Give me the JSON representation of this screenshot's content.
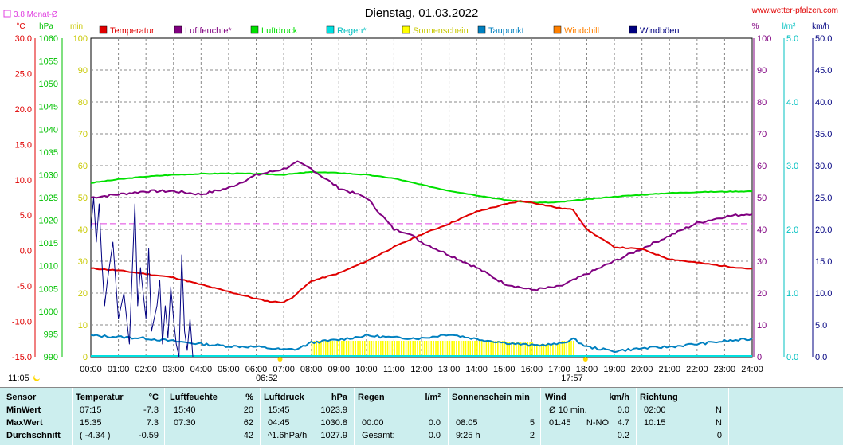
{
  "site": "www.wetter-pfalzen.com",
  "monthavg_label": "3.8 Monat-Ø",
  "sunrise": "06:52",
  "sunset": "17:57",
  "moon_time": "11:05",
  "colors": {
    "temp": "#e00000",
    "hum": "#800080",
    "press": "#00e000",
    "rain": "#00e0e0",
    "sun": "#ffff00",
    "dew": "#0080c0",
    "chill": "#ff8000",
    "gust": "#000080",
    "monthavg": "#e040e0"
  },
  "chart_data": {
    "type": "line",
    "title": "Dienstag, 01.03.2022",
    "legend": [
      "Temperatur",
      "Luftfeuchte*",
      "Luftdruck",
      "Regen*",
      "Sonnenschein",
      "Taupunkt",
      "Windchill",
      "Windböen"
    ],
    "legend_position": "top",
    "grid": true,
    "x_ticks": [
      "00:00",
      "01:00",
      "02:00",
      "03:00",
      "04:00",
      "05:00",
      "06:00",
      "07:00",
      "08:00",
      "09:00",
      "10:00",
      "11:00",
      "12:00",
      "13:00",
      "14:00",
      "15:00",
      "16:00",
      "17:00",
      "18:00",
      "19:00",
      "20:00",
      "21:00",
      "22:00",
      "23:00",
      "24:00"
    ],
    "axes": {
      "temp": {
        "unit": "°C",
        "range": [
          -15,
          30
        ],
        "ticks": [
          "30.0",
          "25.0",
          "20.0",
          "15.0",
          "10.0",
          "5.0",
          "0.0",
          "-5.0",
          "-10.0",
          "-15.0"
        ]
      },
      "press": {
        "unit": "hPa",
        "range": [
          990,
          1060
        ],
        "ticks": [
          "1060",
          "1055",
          "1050",
          "1045",
          "1040",
          "1035",
          "1030",
          "1025",
          "1020",
          "1015",
          "1010",
          "1005",
          "1000",
          "995",
          "990"
        ]
      },
      "sun": {
        "unit": "min",
        "range": [
          0,
          100
        ],
        "ticks": [
          "100",
          "90",
          "80",
          "70",
          "60",
          "50",
          "40",
          "30",
          "20",
          "10",
          "0"
        ]
      },
      "hum": {
        "unit": "%",
        "range": [
          0,
          100
        ],
        "ticks": [
          "100",
          "90",
          "80",
          "70",
          "60",
          "50",
          "40",
          "30",
          "20",
          "10",
          "0"
        ]
      },
      "rain": {
        "unit": "l/m²",
        "range": [
          0,
          5
        ],
        "ticks": [
          "5.0",
          "4.0",
          "3.0",
          "2.0",
          "1.0",
          "0.0"
        ]
      },
      "wind": {
        "unit": "km/h",
        "range": [
          0,
          50
        ],
        "ticks": [
          "50.0",
          "45.0",
          "40.0",
          "35.0",
          "30.0",
          "25.0",
          "20.0",
          "15.0",
          "10.0",
          "5.0",
          "0.0"
        ]
      }
    },
    "month_avg_temp": 3.8,
    "series": [
      {
        "name": "Temperatur",
        "axis": "temp",
        "x": [
          0,
          1,
          2,
          3,
          4,
          5,
          6,
          6.5,
          7,
          7.25,
          8,
          9,
          10,
          11,
          12,
          13,
          14,
          15,
          15.58,
          16,
          17,
          17.5,
          18,
          19,
          20,
          21,
          22,
          23,
          24
        ],
        "y": [
          -2.5,
          -2.8,
          -3.3,
          -3.8,
          -4.8,
          -5.8,
          -6.8,
          -7.2,
          -7.3,
          -6.8,
          -4.3,
          -3.2,
          -1.5,
          0.5,
          2.3,
          3.8,
          5.5,
          6.5,
          7.0,
          6.8,
          6.0,
          5.8,
          3.0,
          0.5,
          0.2,
          -1.2,
          -1.7,
          -2.2,
          -2.6
        ]
      },
      {
        "name": "Luftfeuchte*",
        "axis": "hum",
        "x": [
          0,
          1,
          2,
          3,
          4,
          5,
          6,
          7,
          7.5,
          8,
          9,
          10,
          11,
          11.5,
          12,
          13,
          14,
          15,
          16,
          17,
          18,
          19,
          20,
          21,
          22,
          23,
          24
        ],
        "y": [
          50,
          51,
          52,
          52,
          51,
          53,
          57,
          59,
          61,
          59,
          53,
          50,
          40,
          39,
          36,
          32,
          28,
          23,
          21,
          22,
          26,
          30,
          34,
          38,
          42,
          44,
          45
        ]
      },
      {
        "name": "Luftdruck",
        "axis": "press",
        "x": [
          0,
          1,
          2,
          3,
          4,
          5,
          6,
          7,
          8,
          9,
          10,
          11,
          12,
          13,
          14,
          15,
          16,
          16.75,
          17,
          18,
          19,
          20,
          21,
          22,
          23,
          24
        ],
        "y": [
          1028.2,
          1029.0,
          1029.6,
          1030.0,
          1030.2,
          1030.3,
          1030.2,
          1030.0,
          1030.6,
          1030.4,
          1030.0,
          1029.2,
          1027.8,
          1026.5,
          1025.5,
          1024.5,
          1023.9,
          1023.9,
          1024.0,
          1024.6,
          1025.2,
          1025.6,
          1026.0,
          1026.2,
          1026.3,
          1026.4
        ]
      },
      {
        "name": "Taupunkt",
        "axis": "temp",
        "x": [
          0,
          1,
          2,
          3,
          4,
          5,
          6,
          7,
          7.5,
          8,
          9,
          10,
          11,
          12,
          13,
          14,
          15,
          16,
          17,
          17.5,
          18,
          19,
          20,
          21,
          22,
          23,
          24
        ],
        "y": [
          -12.0,
          -12.2,
          -12.4,
          -12.8,
          -13.2,
          -13.5,
          -13.6,
          -14.0,
          -13.9,
          -13.0,
          -12.6,
          -12.0,
          -12.3,
          -12.4,
          -11.8,
          -12.5,
          -13.0,
          -13.4,
          -13.2,
          -12.5,
          -13.6,
          -14.2,
          -13.8,
          -13.6,
          -13.2,
          -12.8,
          -12.5
        ]
      },
      {
        "name": "Windböen",
        "axis": "wind",
        "x": [
          0,
          0.1,
          0.2,
          0.3,
          0.4,
          0.5,
          0.6,
          0.8,
          1.0,
          1.2,
          1.4,
          1.6,
          1.7,
          1.8,
          1.9,
          2.0,
          2.1,
          2.2,
          2.3,
          2.4,
          2.5,
          2.6,
          2.7,
          2.8,
          2.9,
          3.0,
          3.1,
          3.2,
          3.3,
          3.4,
          3.5,
          3.6,
          3.7
        ],
        "y": [
          20,
          25,
          18,
          24,
          15,
          8,
          12,
          18,
          6,
          10,
          2,
          24,
          8,
          14,
          10,
          6,
          17,
          4,
          6,
          8,
          12,
          2,
          8,
          3,
          11,
          6,
          2,
          0,
          16,
          4,
          1,
          6,
          0
        ]
      },
      {
        "name": "Sonnenschein",
        "axis": "sun",
        "x": [
          8,
          9,
          10,
          11,
          12,
          13,
          14,
          15,
          16,
          17
        ],
        "y": [
          5,
          5,
          5,
          5,
          5,
          5,
          5,
          4.5,
          4,
          4
        ]
      }
    ]
  },
  "stats": {
    "headers": {
      "sensor": "Sensor",
      "temp": "Temperatur",
      "temp_unit": "°C",
      "hum": "Luftfeuchte",
      "hum_unit": "%",
      "press": "Luftdruck",
      "press_unit": "hPa",
      "rain": "Regen",
      "rain_unit": "l/m²",
      "sun": "Sonnenschein min",
      "wind": "Wind",
      "wind_unit": "km/h",
      "dir": "Richtung"
    },
    "rows": [
      {
        "label": "MinWert",
        "temp_time": "07:15",
        "temp_val": "-7.3",
        "hum_time": "15:40",
        "hum_val": "20",
        "press_time": "15:45",
        "press_val": "1023.9",
        "rain_time": "",
        "rain_val": "",
        "sun_time": "",
        "sun_val": "",
        "wind_time": "Ø 10 min.",
        "wind_dir": "",
        "wind_val": "0.0",
        "dir_time": "02:00",
        "dir_val": "N"
      },
      {
        "label": "MaxWert",
        "temp_time": "15:35",
        "temp_val": "7.3",
        "hum_time": "07:30",
        "hum_val": "62",
        "press_time": "04:45",
        "press_val": "1030.8",
        "rain_time": "00:00",
        "rain_val": "0.0",
        "sun_time": "08:05",
        "sun_val": "5",
        "wind_time": "01:45",
        "wind_dir": "N-NO",
        "wind_val": "4.7",
        "dir_time": "10:15",
        "dir_val": "N"
      },
      {
        "label": "Durchschnitt",
        "temp_time": "( -4.34 )",
        "temp_val": "-0.59",
        "hum_time": "",
        "hum_val": "42",
        "press_time": "^1.6hPa/h",
        "press_val": "1027.9",
        "rain_time": "Gesamt:",
        "rain_val": "0.0",
        "sun_time": "9:25 h",
        "sun_val": "2",
        "wind_time": "",
        "wind_dir": "",
        "wind_val": "0.2",
        "dir_time": "",
        "dir_val": "0"
      }
    ]
  }
}
